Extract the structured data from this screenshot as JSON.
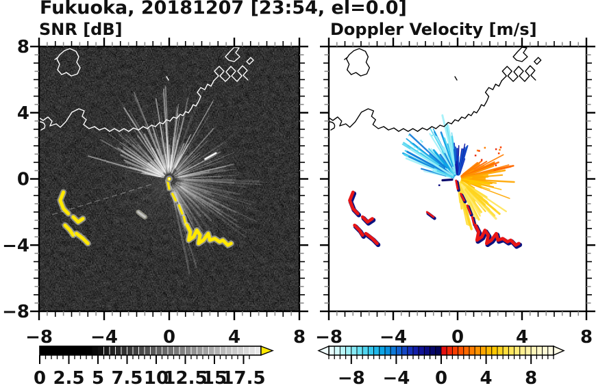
{
  "title": "Fukuoka, 20181207 [23:54, el=0.0]",
  "station": "Fukuoka",
  "date": "20181207",
  "time": "23:54",
  "elevation": "el=0.0",
  "chart_data": [
    {
      "type": "heatmap",
      "panel": "left",
      "title": "SNR [dB]",
      "xlim": [
        -8,
        8
      ],
      "ylim": [
        -8,
        8
      ],
      "x_ticks": [
        -8,
        -4,
        0,
        4,
        8
      ],
      "y_ticks": [
        8,
        4,
        0,
        -4,
        -8
      ],
      "x_tick_labels": [
        "−8",
        "−4",
        "0",
        "4",
        "8"
      ],
      "y_tick_labels": [
        "8",
        "4",
        "0",
        "−4",
        "−8"
      ],
      "minor_tick_step": 0.5,
      "grid": false,
      "background_color": "#000000",
      "coastline_color": "#ffffff",
      "echo_color": "#ffe800",
      "radar_center": [
        0,
        0
      ],
      "clutter_fan": {
        "bright_angle_deg": [
          55,
          170
        ],
        "ne_angle_deg": [
          0,
          55
        ],
        "dim_angle_deg": [
          -80,
          0
        ],
        "max_len_km": 5
      },
      "description": "black sea with speckle noise, white coastline, gray radial sea-clutter streaks from radar at origin, yellow high-SNR ship echoes",
      "colorbar": {
        "range": [
          0,
          19
        ],
        "cell_step": 0.5,
        "scale": "grayscale black to white",
        "over_color": "#ffe800",
        "tick_values": [
          0,
          2.5,
          5,
          7.5,
          10,
          12.5,
          15,
          17.5
        ],
        "tick_labels": [
          "0",
          "2.5",
          "5",
          "7.5",
          "10",
          "12.5",
          "15",
          "17.5"
        ]
      }
    },
    {
      "type": "heatmap",
      "panel": "right",
      "title": "Doppler Velocity [m/s]",
      "xlim": [
        -8,
        8
      ],
      "ylim": [
        -8,
        8
      ],
      "x_ticks": [
        -8,
        -4,
        0,
        4,
        8
      ],
      "y_ticks": [
        8,
        4,
        0,
        -4,
        -8
      ],
      "x_tick_labels": [
        "−8",
        "−4",
        "0",
        "4",
        "8"
      ],
      "y_tick_labels": [
        "8",
        "4",
        "0",
        "−4",
        "−8"
      ],
      "minor_tick_step": 0.5,
      "grid": false,
      "background_color": "#ffffff",
      "coastline_color": "#000000",
      "radar_center": [
        0,
        0
      ],
      "fans": {
        "toward_angle_deg": [
          70,
          168
        ],
        "toward_note": "cyan/blue fan N-NW of radar (negative velocity)",
        "away_angle_deg": [
          -85,
          40
        ],
        "away_note": "orange/yellow fan E-SE of radar (positive velocity)"
      },
      "description": "white background, black coastline, cyan-blue negative velocity fan NW of radar, orange-yellow positive fan E-SE, red/navy ship echoes",
      "colorbar": {
        "range": [
          -10,
          10
        ],
        "cell_step": 0.5,
        "tick_values": [
          -8,
          -4,
          0,
          4,
          8
        ],
        "tick_labels": [
          "−8",
          "−4",
          "0",
          "4",
          "8"
        ],
        "under_color": "#f0feff",
        "over_color": "#fffce8",
        "negative_colors": [
          "#e6fdff",
          "#d2fafc",
          "#b9f6fa",
          "#9ff1f8",
          "#85eaf6",
          "#6ae1f3",
          "#50d5f0",
          "#36c7ed",
          "#1fb7ea",
          "#0ca4e5",
          "#0990df",
          "#0d79d8",
          "#1160cf",
          "#1447c5",
          "#1531b9",
          "#141fa9",
          "#101295",
          "#0b0b80",
          "#07076b",
          "#040457"
        ],
        "positive_colors": [
          "#e51010",
          "#f22808",
          "#fa3e00",
          "#ff5400",
          "#ff6900",
          "#ff7e00",
          "#ff9300",
          "#ffa600",
          "#ffb800",
          "#ffc800",
          "#ffd41e",
          "#ffde3d",
          "#ffe55b",
          "#ffeb77",
          "#ffef90",
          "#fff3a6",
          "#fff6b9",
          "#fff8c9",
          "#fffad6",
          "#fffbe0"
        ]
      }
    }
  ],
  "echo_tracks": [
    {
      "points": [
        [
          -0.1,
          -0.1
        ],
        [
          0.0,
          -0.6
        ]
      ],
      "thin": true
    },
    {
      "points": [
        [
          0.2,
          -0.9
        ],
        [
          0.4,
          -1.3
        ]
      ],
      "thin": true
    },
    {
      "points": [
        [
          0.6,
          -1.6
        ],
        [
          0.8,
          -2.1
        ]
      ],
      "thin": true
    },
    {
      "points": [
        [
          0.9,
          -2.3
        ],
        [
          1.0,
          -2.7
        ]
      ],
      "thin": true
    },
    {
      "points": [
        [
          1.1,
          -2.8
        ],
        [
          1.3,
          -3.2
        ],
        [
          1.2,
          -3.7
        ],
        [
          1.5,
          -3.5
        ],
        [
          1.7,
          -3.1
        ],
        [
          1.9,
          -3.4
        ],
        [
          1.8,
          -3.9
        ],
        [
          2.1,
          -3.7
        ],
        [
          2.4,
          -3.3
        ],
        [
          2.5,
          -3.7
        ],
        [
          2.8,
          -3.6
        ],
        [
          3.1,
          -3.8
        ],
        [
          3.3,
          -3.7
        ],
        [
          3.6,
          -4.0
        ],
        [
          3.8,
          -3.9
        ]
      ]
    },
    {
      "points": [
        [
          -6.5,
          -0.8
        ],
        [
          -6.7,
          -1.3
        ],
        [
          -6.5,
          -1.8
        ],
        [
          -6.2,
          -2.1
        ]
      ]
    },
    {
      "points": [
        [
          -5.9,
          -2.3
        ],
        [
          -5.6,
          -2.6
        ],
        [
          -5.3,
          -2.4
        ]
      ]
    },
    {
      "points": [
        [
          -6.4,
          -2.8
        ],
        [
          -6.1,
          -3.1
        ],
        [
          -5.9,
          -3.4
        ]
      ]
    },
    {
      "points": [
        [
          -5.7,
          -3.3
        ],
        [
          -5.3,
          -3.6
        ],
        [
          -5.0,
          -3.9
        ]
      ]
    },
    {
      "points": [
        [
          -1.9,
          -2.0
        ],
        [
          -1.5,
          -2.3
        ]
      ],
      "thin": true,
      "snr_gray": true
    }
  ]
}
